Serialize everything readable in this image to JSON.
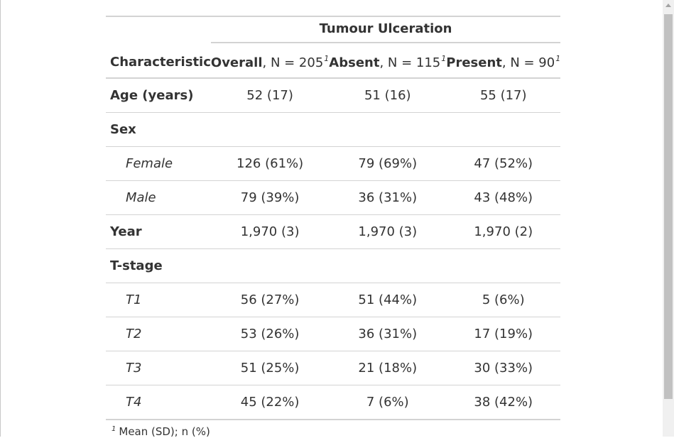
{
  "spanner_label": "Tumour Ulceration",
  "header": {
    "characteristic": "Characteristic",
    "columns": [
      {
        "name": "Overall",
        "n": ", N = 205",
        "fn": "1"
      },
      {
        "name": "Absent",
        "n": ", N = 115",
        "fn": "1"
      },
      {
        "name": "Present",
        "n": ", N = 90",
        "fn": "1"
      }
    ]
  },
  "rows": [
    {
      "label": "Age (years)",
      "values": [
        "52 (17)",
        "51 (16)",
        "55 (17)"
      ]
    },
    {
      "label": "Sex",
      "values": [
        "",
        "",
        ""
      ]
    },
    {
      "label": "Female",
      "values": [
        "126 (61%)",
        "79 (69%)",
        "47 (52%)"
      ]
    },
    {
      "label": "Male",
      "values": [
        "79 (39%)",
        "36 (31%)",
        "43 (48%)"
      ]
    },
    {
      "label": "Year",
      "values": [
        "1,970 (3)",
        "1,970 (3)",
        "1,970 (2)"
      ]
    },
    {
      "label": "T-stage",
      "values": [
        "",
        "",
        ""
      ]
    },
    {
      "label": "T1",
      "values": [
        "56 (27%)",
        "51 (44%)",
        "5 (6%)"
      ]
    },
    {
      "label": "T2",
      "values": [
        "53 (26%)",
        "36 (31%)",
        "17 (19%)"
      ]
    },
    {
      "label": "T3",
      "values": [
        "51 (25%)",
        "21 (18%)",
        "30 (33%)"
      ]
    },
    {
      "label": "T4",
      "values": [
        "45 (22%)",
        "7 (6%)",
        "38 (42%)"
      ]
    }
  ],
  "footnote": {
    "marker": "1",
    "text": "Mean (SD); n (%)"
  }
}
